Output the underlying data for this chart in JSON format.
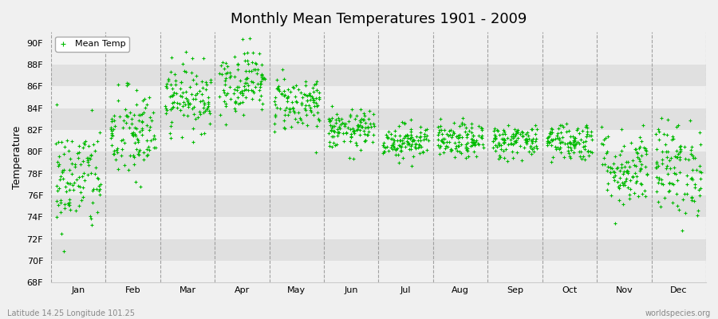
{
  "title": "Monthly Mean Temperatures 1901 - 2009",
  "ylabel": "Temperature",
  "subtitle_left": "Latitude 14.25 Longitude 101.25",
  "subtitle_right": "worldspecies.org",
  "legend_label": "Mean Temp",
  "dot_color": "#00bb00",
  "bg_color": "#f0f0f0",
  "band_colors": [
    "#f0f0f0",
    "#e0e0e0"
  ],
  "ylim": [
    68,
    91
  ],
  "yticks": [
    68,
    70,
    72,
    74,
    76,
    78,
    80,
    82,
    84,
    86,
    88,
    90
  ],
  "ytick_labels": [
    "68F",
    "70F",
    "72F",
    "74F",
    "76F",
    "78F",
    "80F",
    "82F",
    "84F",
    "86F",
    "88F",
    "90F"
  ],
  "months": [
    "Jan",
    "Feb",
    "Mar",
    "Apr",
    "May",
    "Jun",
    "Jul",
    "Aug",
    "Sep",
    "Oct",
    "Nov",
    "Dec"
  ],
  "month_means_f": [
    77.5,
    81.5,
    85.0,
    86.5,
    84.5,
    82.0,
    81.0,
    81.0,
    81.0,
    81.0,
    78.5,
    78.5
  ],
  "month_stds_f": [
    2.5,
    2.2,
    1.5,
    1.5,
    1.3,
    0.9,
    0.8,
    0.8,
    0.8,
    0.9,
    1.8,
    2.2
  ],
  "n_years": 109,
  "seed": 42,
  "dashed_line_color": "#999999",
  "title_fontsize": 13,
  "tick_fontsize": 8,
  "ylabel_fontsize": 9
}
